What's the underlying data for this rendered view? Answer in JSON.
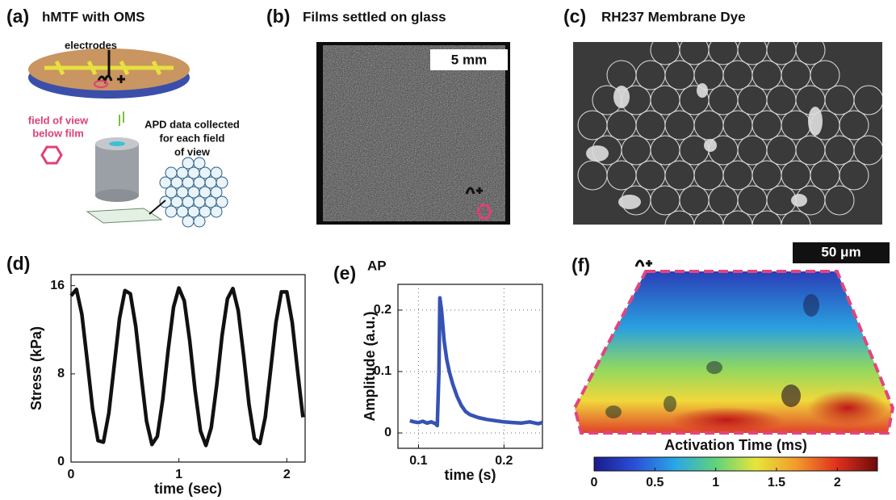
{
  "panels": {
    "a": {
      "label": "(a)",
      "title": "hMTF with OMS",
      "electrodes": "electrodes",
      "field_of_view": [
        "field of view",
        "below film"
      ],
      "apd_note": [
        "APD data collected",
        "for each field",
        "of view"
      ]
    },
    "b": {
      "label": "(b)",
      "title": "Films settled on glass",
      "scale_bar": "5 mm"
    },
    "c": {
      "label": "(c)",
      "title": "RH237 Membrane Dye"
    },
    "f": {
      "label": "(f)",
      "scale_bar": "50 μm"
    }
  },
  "chart_data": [
    {
      "type": "line",
      "label": "(d)",
      "x_label": "time (sec)",
      "y_label": "Stress (kPa)",
      "color": "#111111",
      "grid": false,
      "xlim": [
        0,
        2.17
      ],
      "ylim": [
        0,
        17
      ],
      "xticks": [
        0,
        1,
        2
      ],
      "yticks": [
        0,
        8,
        16
      ],
      "x": [
        0,
        0.05,
        0.1,
        0.15,
        0.2,
        0.25,
        0.3,
        0.35,
        0.4,
        0.45,
        0.5,
        0.55,
        0.6,
        0.65,
        0.7,
        0.75,
        0.8,
        0.85,
        0.9,
        0.95,
        1,
        1.05,
        1.1,
        1.15,
        1.2,
        1.25,
        1.3,
        1.35,
        1.4,
        1.45,
        1.5,
        1.55,
        1.6,
        1.65,
        1.7,
        1.75,
        1.8,
        1.85,
        1.9,
        1.95,
        2,
        2.05,
        2.1,
        2.15
      ],
      "values": [
        15.08,
        15.67,
        13.41,
        9.23,
        4.82,
        1.94,
        1.8,
        4.43,
        8.76,
        13.04,
        15.56,
        15.26,
        12.29,
        7.84,
        3.72,
        1.59,
        2.32,
        5.65,
        10.14,
        14.06,
        15.79,
        14.62,
        11.03,
        6.48,
        2.81,
        1.5,
        3.12,
        6.93,
        11.47,
        14.82,
        15.74,
        13.75,
        9.69,
        5.21,
        2.12,
        1.68,
        4.06,
        8.31,
        12.68,
        15.43,
        15.43,
        12.68,
        8.31,
        4.06
      ]
    },
    {
      "type": "line",
      "label": "(e)",
      "title": "AP",
      "x_label": "time (s)",
      "y_label": "Amplitude (a.u.)",
      "color": "#3552b5",
      "grid": true,
      "xlim": [
        0.076,
        0.245
      ],
      "ylim": [
        -0.025,
        0.242
      ],
      "xticks": [
        0.1,
        0.2
      ],
      "yticks": [
        0,
        0.1,
        0.2
      ],
      "x": [
        0.09,
        0.095,
        0.1,
        0.105,
        0.11,
        0.115,
        0.12,
        0.122,
        0.124,
        0.125,
        0.127,
        0.13,
        0.133,
        0.136,
        0.14,
        0.145,
        0.15,
        0.155,
        0.16,
        0.17,
        0.18,
        0.19,
        0.2,
        0.21,
        0.22,
        0.23,
        0.24,
        0.245
      ],
      "values": [
        0.02,
        0.018,
        0.017,
        0.019,
        0.016,
        0.018,
        0.015,
        0.012,
        0.1,
        0.22,
        0.2,
        0.15,
        0.12,
        0.1,
        0.08,
        0.06,
        0.045,
        0.035,
        0.03,
        0.025,
        0.022,
        0.02,
        0.018,
        0.017,
        0.016,
        0.018,
        0.015,
        0.017
      ]
    },
    {
      "type": "colorbar",
      "title": "Activation Time (ms)",
      "xlim": [
        0,
        2.33
      ],
      "xticks": [
        0,
        0.5,
        1,
        1.5,
        2
      ],
      "colors": [
        "#1a1a8c",
        "#2b4fd8",
        "#2aa6e6",
        "#5fd27c",
        "#e6e63a",
        "#f29a2a",
        "#e0301e",
        "#6e0a0a"
      ]
    }
  ]
}
